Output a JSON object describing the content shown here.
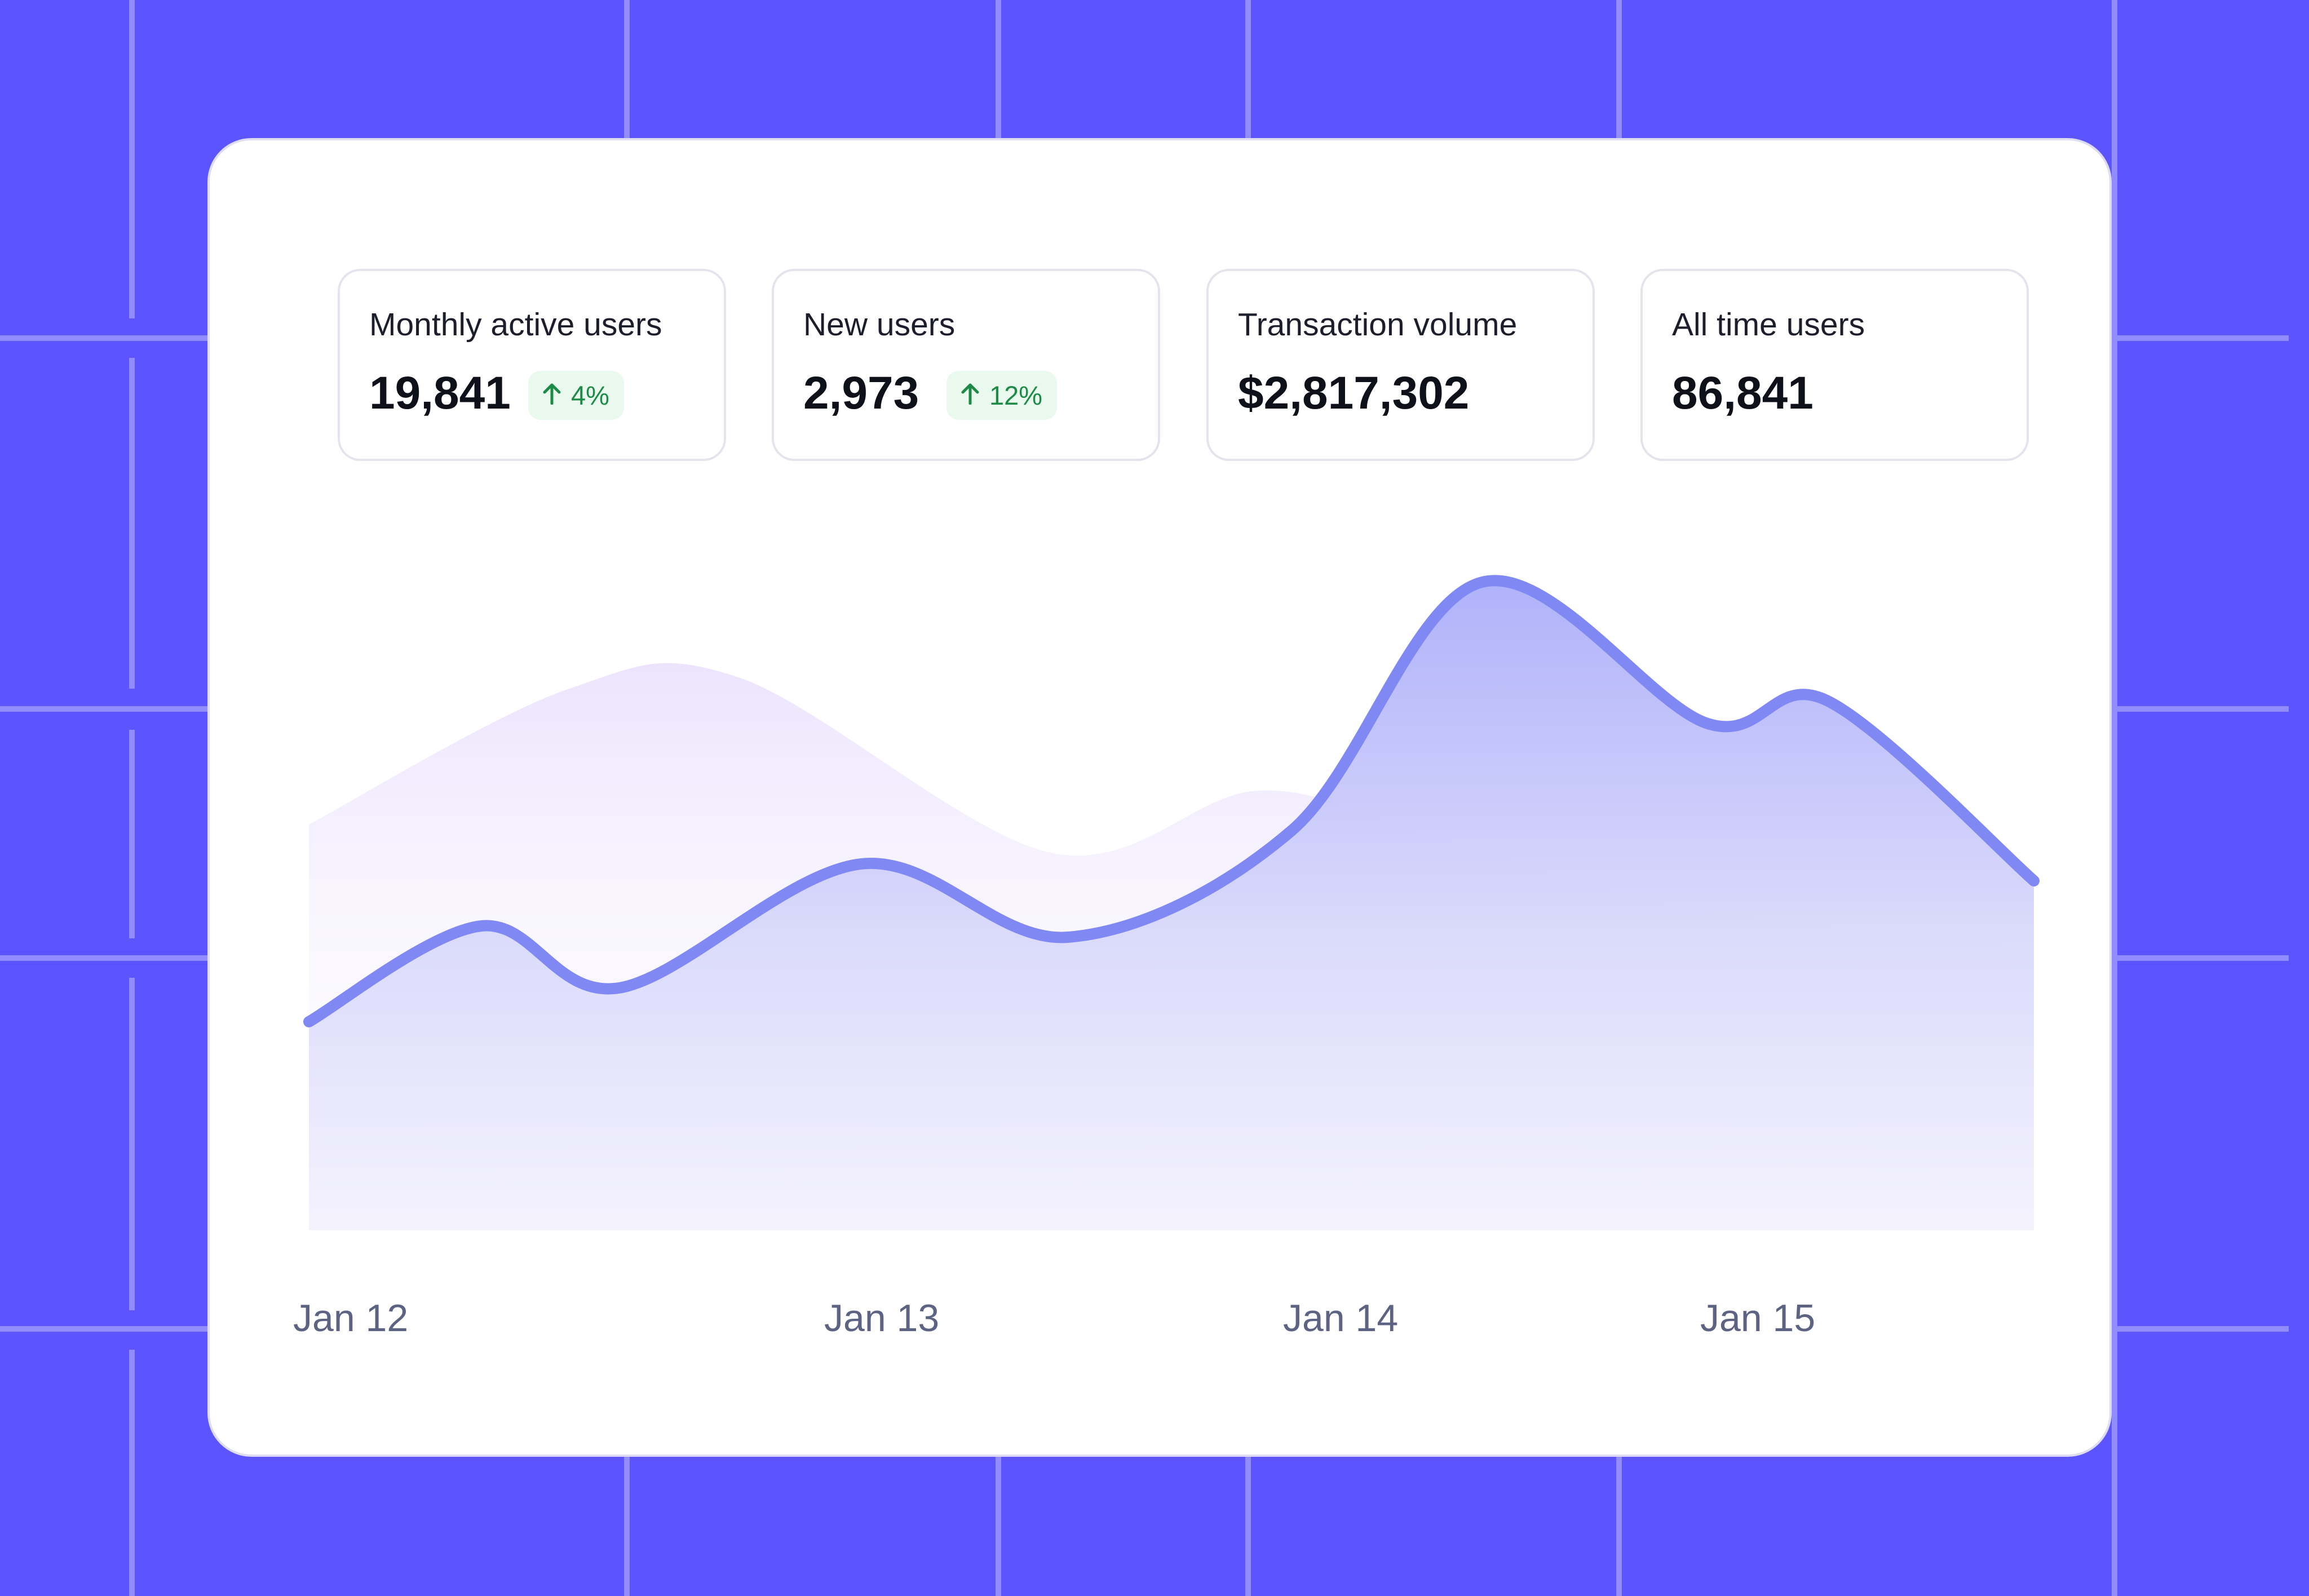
{
  "colors": {
    "background": "#5c55ff",
    "card": "#ffffff",
    "badge_bg": "#e9f9ee",
    "badge_text": "#1d8a45",
    "line": "#8089f3",
    "area_primary": "#b3b4fb",
    "area_secondary": "#ece4fd"
  },
  "stats": [
    {
      "label": "Monthly active users",
      "value": "19,841",
      "change": "4%",
      "change_icon": "arrow-up-icon"
    },
    {
      "label": "New users",
      "value": "2,973",
      "change": "12%",
      "change_icon": "arrow-up-icon"
    },
    {
      "label": "Transaction volume",
      "value": "$2,817,302"
    },
    {
      "label": "All time users",
      "value": "86,841"
    }
  ],
  "chart_data": {
    "type": "area",
    "categories": [
      "Jan 12",
      "Jan 13",
      "Jan 14",
      "Jan 15"
    ],
    "ylim": [
      0,
      100
    ],
    "series": [
      {
        "role": "primary",
        "points": [
          [
            0,
            37
          ],
          [
            0.1,
            54
          ],
          [
            0.18,
            43
          ],
          [
            0.32,
            65
          ],
          [
            0.44,
            52
          ],
          [
            0.57,
            71
          ],
          [
            0.68,
            115
          ],
          [
            0.81,
            90
          ],
          [
            0.88,
            94
          ],
          [
            1.0,
            62
          ]
        ]
      },
      {
        "role": "secondary",
        "points": [
          [
            0,
            72
          ],
          [
            0.15,
            96
          ],
          [
            0.25,
            98
          ],
          [
            0.43,
            67
          ],
          [
            0.55,
            78
          ],
          [
            0.65,
            70
          ],
          [
            0.8,
            57
          ],
          [
            1.0,
            50
          ]
        ]
      }
    ]
  }
}
